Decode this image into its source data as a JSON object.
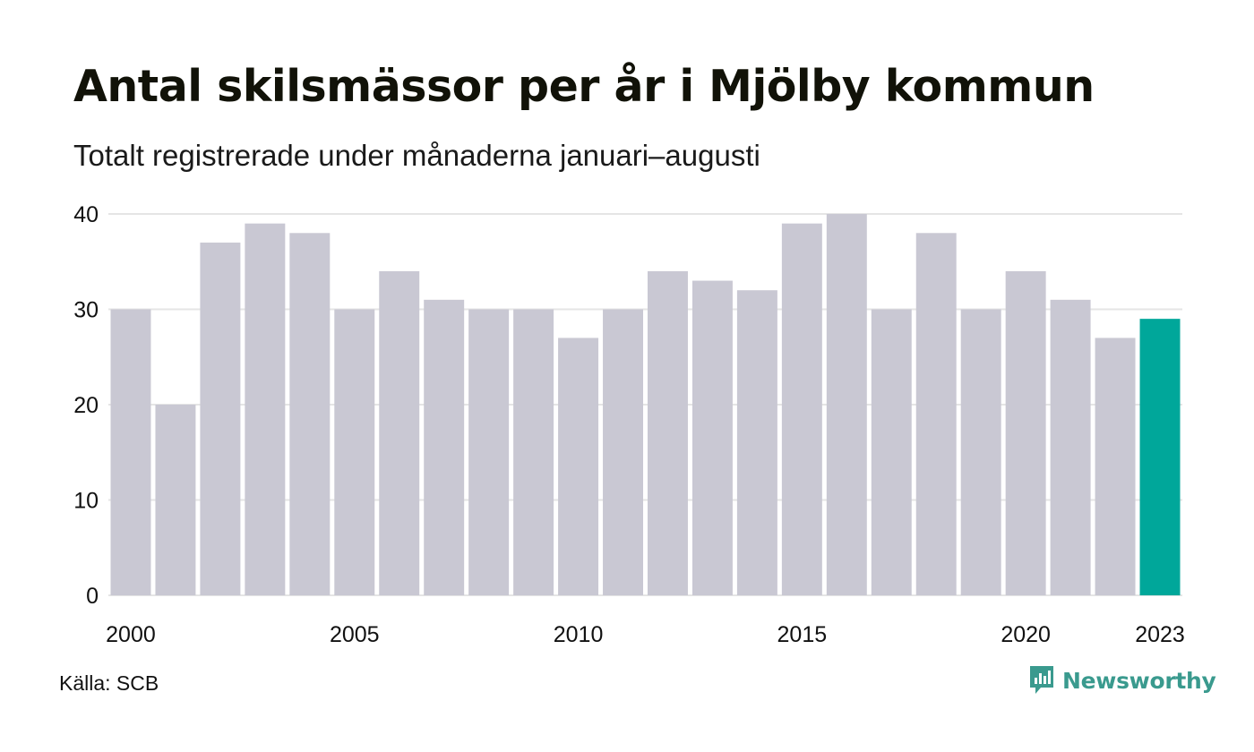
{
  "header": {
    "title": "Antal skilsmässor per år i Mjölby kommun",
    "subtitle": "Totalt registrerade under månaderna januari–augusti"
  },
  "footer": {
    "source": "Källa: SCB",
    "brand": "Newsworthy",
    "brand_icon": "newsworthy-logo-icon"
  },
  "colors": {
    "bar": "#c9c8d3",
    "highlight": "#00a79a",
    "grid": "#e5e5e5",
    "brand": "#3a9a8e"
  },
  "chart_data": {
    "type": "bar",
    "categories": [
      "2000",
      "2001",
      "2002",
      "2003",
      "2004",
      "2005",
      "2006",
      "2007",
      "2008",
      "2009",
      "2010",
      "2011",
      "2012",
      "2013",
      "2014",
      "2015",
      "2016",
      "2017",
      "2018",
      "2019",
      "2020",
      "2021",
      "2022",
      "2023"
    ],
    "values": [
      30,
      20,
      37,
      39,
      38,
      30,
      34,
      31,
      30,
      30,
      27,
      30,
      34,
      33,
      32,
      39,
      40,
      30,
      38,
      30,
      34,
      31,
      27,
      29
    ],
    "highlight_index": 23,
    "x_tick_labels": [
      "2000",
      "2005",
      "2010",
      "2015",
      "2020",
      "2023"
    ],
    "y_ticks": [
      0,
      10,
      20,
      30,
      40
    ],
    "ylim": [
      0,
      40
    ],
    "xlabel": "",
    "ylabel": "",
    "grid": true,
    "legend": "none"
  }
}
